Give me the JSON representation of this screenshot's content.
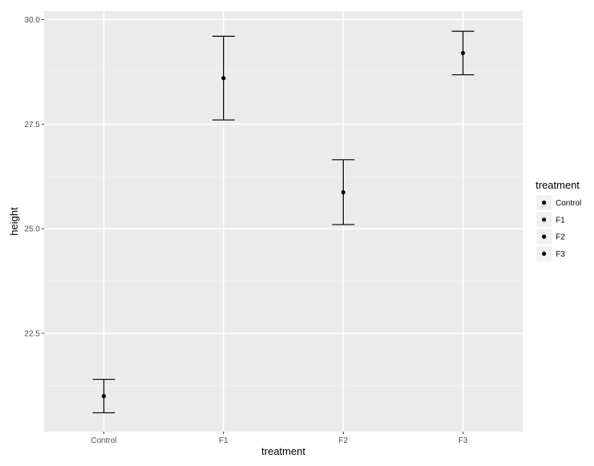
{
  "chart_data": {
    "type": "scatter",
    "subtype": "point-with-errorbars",
    "xlabel": "treatment",
    "ylabel": "height",
    "categories": [
      "Control",
      "F1",
      "F2",
      "F3"
    ],
    "values": [
      21.0,
      28.6,
      25.87,
      29.2
    ],
    "error_low": [
      20.6,
      27.6,
      25.1,
      28.68
    ],
    "error_high": [
      21.4,
      29.6,
      26.65,
      29.72
    ],
    "ylim": [
      20.15,
      30.2
    ],
    "yticks": [
      22.5,
      25.0,
      27.5,
      30.0
    ],
    "ytick_labels": [
      "22.5",
      "25.0",
      "27.5",
      "30.0"
    ],
    "grid": true,
    "legend": {
      "title": "treatment",
      "position": "right",
      "entries": [
        "Control",
        "F1",
        "F2",
        "F3"
      ]
    },
    "colors": {
      "panel_background": "#ebebeb",
      "grid_major": "#ffffff",
      "grid_minor": "#f5f5f5",
      "marks": "#000000",
      "legend_key_background": "#f2f2f2"
    }
  }
}
